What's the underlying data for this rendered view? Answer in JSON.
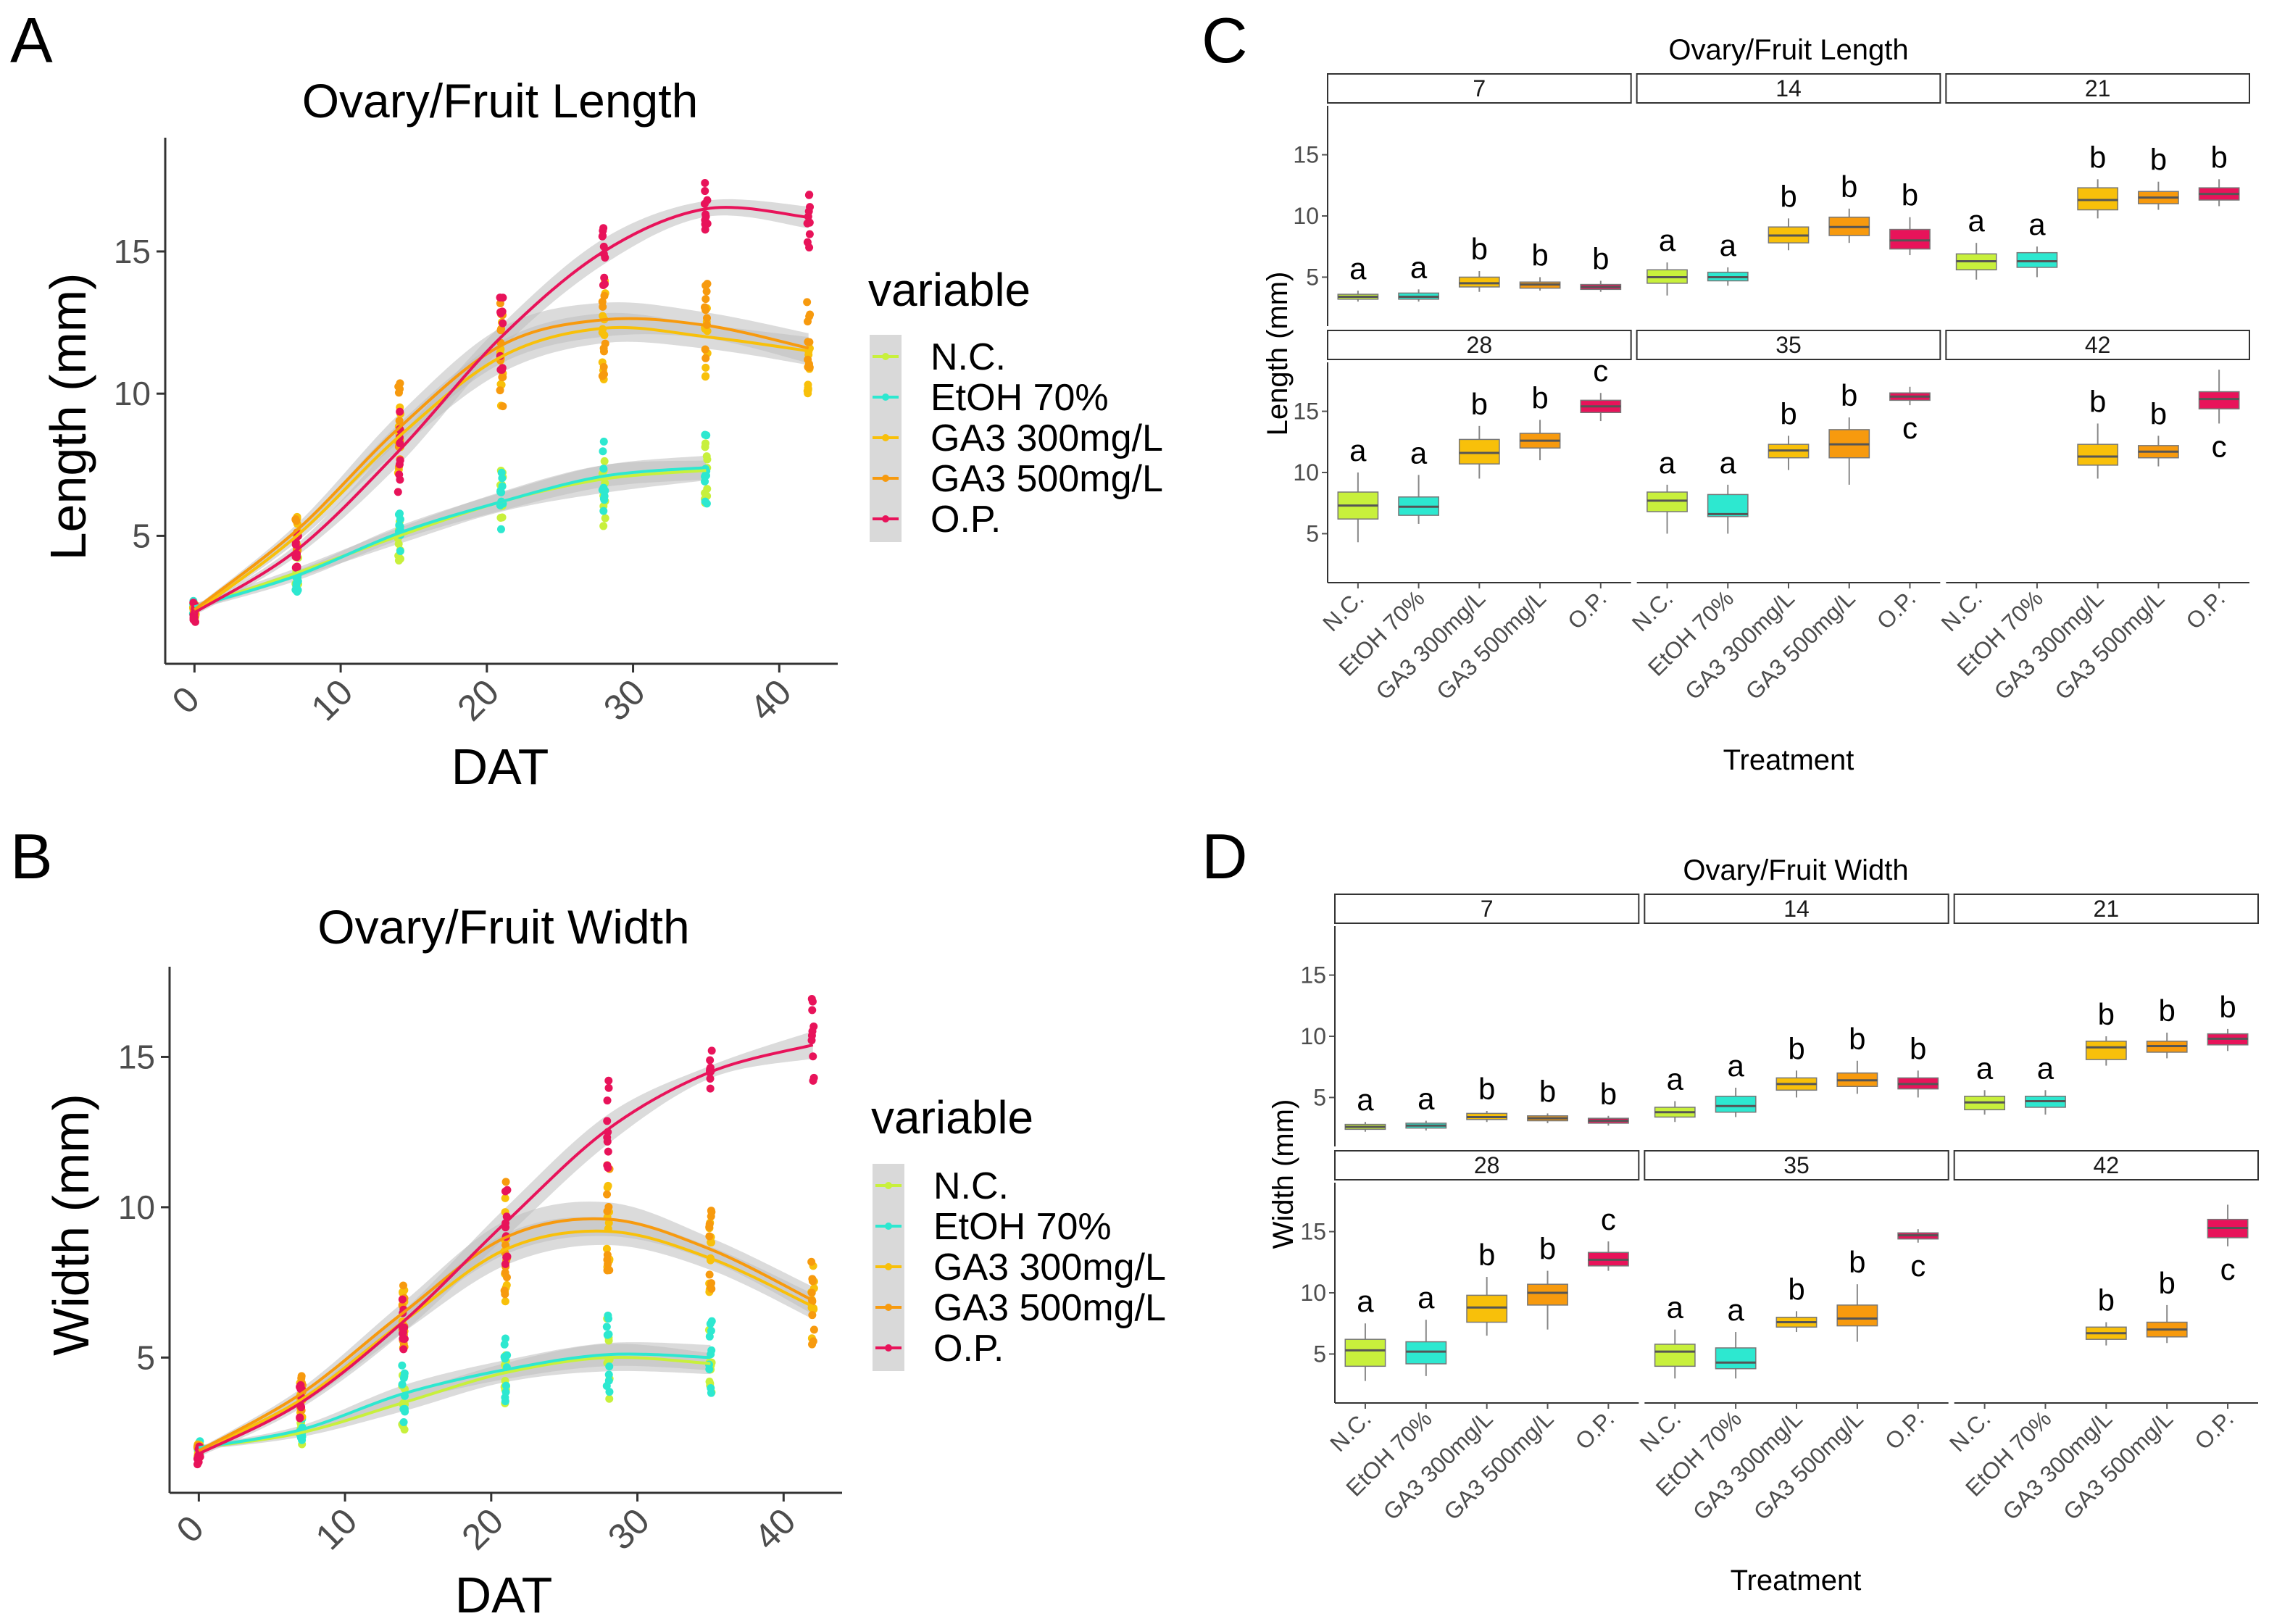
{
  "panel_labels": [
    "A",
    "B",
    "C",
    "D"
  ],
  "colors": {
    "N.C.": "#c8f03c",
    "EtOH 70%": "#2de8d0",
    "GA3 300mg/L": "#f8c00a",
    "GA3 500mg/L": "#f79a0e",
    "O.P.": "#e8135a",
    "ribbon": "#bdbdbd"
  },
  "chart_data": [
    {
      "id": "A",
      "type": "line",
      "title": "Ovary/Fruit Length",
      "xlabel": "DAT",
      "ylabel": "Length (mm)",
      "xlim": [
        -2,
        44
      ],
      "ylim": [
        0.5,
        19
      ],
      "xticks": [
        0,
        10,
        20,
        30,
        40
      ],
      "yticks": [
        5,
        10,
        15
      ],
      "legend": {
        "title": "variable",
        "position": "right"
      },
      "x": [
        0,
        7,
        14,
        21,
        28,
        35,
        42
      ],
      "series": [
        {
          "name": "N.C.",
          "values": [
            2.5,
            3.7,
            5.0,
            6.2,
            7.0,
            7.3,
            null
          ],
          "spread": [
            0.3,
            0.5,
            0.8,
            1.0,
            1.4,
            1.0,
            0
          ]
        },
        {
          "name": "EtOH 70%",
          "values": [
            2.5,
            3.6,
            5.1,
            6.2,
            7.1,
            7.4,
            null
          ],
          "spread": [
            0.3,
            0.5,
            0.7,
            0.9,
            1.1,
            1.2,
            0
          ]
        },
        {
          "name": "GA3 300mg/L",
          "values": [
            2.3,
            5.0,
            8.5,
            11.3,
            12.3,
            12.0,
            11.5
          ],
          "spread": [
            0.2,
            0.6,
            1.3,
            1.6,
            1.5,
            1.2,
            1.4
          ]
        },
        {
          "name": "GA3 500mg/L",
          "values": [
            2.4,
            5.2,
            8.8,
            11.7,
            12.6,
            12.4,
            11.6
          ],
          "spread": [
            0.2,
            0.6,
            1.4,
            1.8,
            1.7,
            1.3,
            1.5
          ]
        },
        {
          "name": "O.P.",
          "values": [
            2.3,
            4.5,
            8.0,
            12.0,
            15.0,
            16.5,
            16.2
          ],
          "spread": [
            0.3,
            0.6,
            1.4,
            1.2,
            1.3,
            0.8,
            1.1
          ]
        }
      ]
    },
    {
      "id": "B",
      "type": "line",
      "title": "Ovary/Fruit Width",
      "xlabel": "DAT",
      "ylabel": "Width (mm)",
      "xlim": [
        -2,
        44
      ],
      "ylim": [
        0.5,
        18
      ],
      "xticks": [
        0,
        10,
        20,
        30,
        40
      ],
      "yticks": [
        5,
        10,
        15
      ],
      "legend": {
        "title": "variable",
        "position": "right"
      },
      "x": [
        0,
        7,
        14,
        21,
        28,
        35,
        42
      ],
      "series": [
        {
          "name": "N.C.",
          "values": [
            2.0,
            2.5,
            3.5,
            4.5,
            5.0,
            4.8,
            null
          ],
          "spread": [
            0.2,
            0.4,
            0.8,
            0.9,
            1.3,
            1.0,
            0
          ]
        },
        {
          "name": "EtOH 70%",
          "values": [
            2.0,
            2.6,
            3.8,
            4.6,
            5.1,
            5.0,
            null
          ],
          "spread": [
            0.2,
            0.4,
            0.8,
            0.9,
            1.1,
            1.2,
            0
          ]
        },
        {
          "name": "GA3 300mg/L",
          "values": [
            1.9,
            3.6,
            6.2,
            8.6,
            9.2,
            8.3,
            6.7
          ],
          "spread": [
            0.2,
            0.5,
            1.0,
            1.5,
            1.3,
            1.1,
            1.2
          ]
        },
        {
          "name": "GA3 500mg/L",
          "values": [
            1.9,
            3.8,
            6.5,
            9.0,
            9.6,
            8.6,
            6.9
          ],
          "spread": [
            0.2,
            0.5,
            1.0,
            1.6,
            1.6,
            1.1,
            1.3
          ]
        },
        {
          "name": "O.P.",
          "values": [
            1.8,
            3.5,
            6.2,
            9.5,
            12.6,
            14.5,
            15.4
          ],
          "spread": [
            0.3,
            0.5,
            1.0,
            1.4,
            1.4,
            0.6,
            1.3
          ]
        }
      ]
    },
    {
      "id": "C",
      "type": "box",
      "title": "Ovary/Fruit Length",
      "xlabel": "Treatment",
      "ylabel": "Length (mm)",
      "ylim": [
        1,
        19
      ],
      "yticks": [
        5,
        10,
        15
      ],
      "categories": [
        "N.C.",
        "EtOH 70%",
        "GA3 300mg/L",
        "GA3 500mg/L",
        "O.P."
      ],
      "facets": [
        {
          "label": "7",
          "boxes": [
            {
              "q": [
                3.0,
                3.2,
                3.4,
                3.6,
                3.9
              ],
              "sig": "a"
            },
            {
              "q": [
                3.0,
                3.2,
                3.4,
                3.7,
                4.0
              ],
              "sig": "a"
            },
            {
              "q": [
                3.8,
                4.2,
                4.5,
                5.0,
                5.5
              ],
              "sig": "b"
            },
            {
              "q": [
                3.9,
                4.1,
                4.4,
                4.6,
                5.0
              ],
              "sig": "b"
            },
            {
              "q": [
                3.8,
                4.0,
                4.2,
                4.4,
                4.7
              ],
              "sig": "b"
            }
          ]
        },
        {
          "label": "14",
          "boxes": [
            {
              "q": [
                3.5,
                4.5,
                5.0,
                5.6,
                6.2
              ],
              "sig": "a"
            },
            {
              "q": [
                4.3,
                4.7,
                5.0,
                5.4,
                5.8
              ],
              "sig": "a"
            },
            {
              "q": [
                7.2,
                7.8,
                8.4,
                9.1,
                9.8
              ],
              "sig": "b"
            },
            {
              "q": [
                7.8,
                8.4,
                9.1,
                9.9,
                10.6
              ],
              "sig": "b"
            },
            {
              "q": [
                6.8,
                7.3,
                8.0,
                8.9,
                9.9
              ],
              "sig": "b"
            }
          ]
        },
        {
          "label": "21",
          "boxes": [
            {
              "q": [
                4.8,
                5.6,
                6.3,
                6.9,
                7.8
              ],
              "sig": "a"
            },
            {
              "q": [
                5.0,
                5.8,
                6.3,
                7.0,
                7.5
              ],
              "sig": "a"
            },
            {
              "q": [
                9.8,
                10.5,
                11.3,
                12.3,
                13.0
              ],
              "sig": "b"
            },
            {
              "q": [
                10.5,
                11.0,
                11.5,
                12.0,
                12.8
              ],
              "sig": "b"
            },
            {
              "q": [
                10.8,
                11.3,
                11.8,
                12.3,
                13.0
              ],
              "sig": "b"
            }
          ]
        },
        {
          "label": "28",
          "boxes": [
            {
              "q": [
                4.3,
                6.2,
                7.3,
                8.4,
                10.0
              ],
              "sig": "a"
            },
            {
              "q": [
                5.8,
                6.5,
                7.2,
                8.0,
                9.8
              ],
              "sig": "a"
            },
            {
              "q": [
                9.5,
                10.7,
                11.6,
                12.7,
                13.8
              ],
              "sig": "b"
            },
            {
              "q": [
                11.0,
                12.0,
                12.6,
                13.2,
                14.3
              ],
              "sig": "b"
            },
            {
              "q": [
                14.2,
                14.9,
                15.4,
                15.9,
                16.5
              ],
              "sig": "c"
            }
          ]
        },
        {
          "label": "35",
          "boxes": [
            {
              "q": [
                5.0,
                6.8,
                7.7,
                8.4,
                9.0
              ],
              "sig": "a"
            },
            {
              "q": [
                5.0,
                6.4,
                6.6,
                8.2,
                9.0
              ],
              "sig": "a"
            },
            {
              "q": [
                10.2,
                11.2,
                11.8,
                12.3,
                13.0
              ],
              "sig": "b"
            },
            {
              "q": [
                9.0,
                11.2,
                12.3,
                13.5,
                14.5
              ],
              "sig": "b"
            },
            {
              "q": [
                15.5,
                15.9,
                16.2,
                16.5,
                17.0
              ],
              "sig": "c"
            }
          ]
        },
        {
          "label": "42",
          "boxes": [
            {
              "q": null,
              "sig": ""
            },
            {
              "q": null,
              "sig": ""
            },
            {
              "q": [
                9.5,
                10.6,
                11.3,
                12.3,
                14.0
              ],
              "sig": "b"
            },
            {
              "q": [
                10.5,
                11.2,
                11.7,
                12.2,
                13.0
              ],
              "sig": "b"
            },
            {
              "q": [
                14.0,
                15.2,
                16.0,
                16.6,
                18.4
              ],
              "sig": "c"
            }
          ]
        }
      ]
    },
    {
      "id": "D",
      "type": "box",
      "title": "Ovary/Fruit Width",
      "xlabel": "Treatment",
      "ylabel": "Width (mm)",
      "ylim": [
        1,
        19
      ],
      "yticks": [
        5,
        10,
        15
      ],
      "categories": [
        "N.C.",
        "EtOH 70%",
        "GA3 300mg/L",
        "GA3 500mg/L",
        "O.P."
      ],
      "facets": [
        {
          "label": "7",
          "boxes": [
            {
              "q": [
                2.2,
                2.4,
                2.6,
                2.8,
                3.0
              ],
              "sig": "a"
            },
            {
              "q": [
                2.3,
                2.5,
                2.7,
                2.9,
                3.1
              ],
              "sig": "a"
            },
            {
              "q": [
                3.0,
                3.2,
                3.4,
                3.7,
                3.9
              ],
              "sig": "b"
            },
            {
              "q": [
                2.9,
                3.1,
                3.3,
                3.5,
                3.7
              ],
              "sig": "b"
            },
            {
              "q": [
                2.7,
                2.9,
                3.1,
                3.3,
                3.5
              ],
              "sig": "b"
            }
          ]
        },
        {
          "label": "14",
          "boxes": [
            {
              "q": [
                3.0,
                3.4,
                3.8,
                4.2,
                4.7
              ],
              "sig": "a"
            },
            {
              "q": [
                3.4,
                3.8,
                4.3,
                5.1,
                5.8
              ],
              "sig": "a"
            },
            {
              "q": [
                5.0,
                5.6,
                6.1,
                6.6,
                7.2
              ],
              "sig": "b"
            },
            {
              "q": [
                5.3,
                5.9,
                6.4,
                7.0,
                8.0
              ],
              "sig": "b"
            },
            {
              "q": [
                5.0,
                5.7,
                6.1,
                6.6,
                7.2
              ],
              "sig": "b"
            }
          ]
        },
        {
          "label": "21",
          "boxes": [
            {
              "q": [
                3.6,
                4.0,
                4.6,
                5.1,
                5.6
              ],
              "sig": "a"
            },
            {
              "q": [
                3.6,
                4.2,
                4.7,
                5.1,
                5.6
              ],
              "sig": "a"
            },
            {
              "q": [
                7.6,
                8.1,
                9.1,
                9.6,
                10.0
              ],
              "sig": "b"
            },
            {
              "q": [
                8.2,
                8.7,
                9.2,
                9.6,
                10.3
              ],
              "sig": "b"
            },
            {
              "q": [
                8.8,
                9.3,
                9.8,
                10.2,
                10.6
              ],
              "sig": "b"
            }
          ]
        },
        {
          "label": "28",
          "boxes": [
            {
              "q": [
                2.8,
                4.0,
                5.3,
                6.2,
                7.5
              ],
              "sig": "a"
            },
            {
              "q": [
                3.2,
                4.2,
                5.2,
                6.0,
                7.8
              ],
              "sig": "a"
            },
            {
              "q": [
                6.5,
                7.6,
                8.8,
                9.8,
                11.3
              ],
              "sig": "b"
            },
            {
              "q": [
                7.0,
                9.0,
                10.0,
                10.7,
                11.8
              ],
              "sig": "b"
            },
            {
              "q": [
                11.8,
                12.2,
                12.7,
                13.3,
                14.2
              ],
              "sig": "c"
            }
          ]
        },
        {
          "label": "35",
          "boxes": [
            {
              "q": [
                3.0,
                4.0,
                5.2,
                5.8,
                7.0
              ],
              "sig": "a"
            },
            {
              "q": [
                3.0,
                3.8,
                4.3,
                5.5,
                6.8
              ],
              "sig": "a"
            },
            {
              "q": [
                6.8,
                7.2,
                7.6,
                8.0,
                8.5
              ],
              "sig": "b"
            },
            {
              "q": [
                6.0,
                7.3,
                7.9,
                9.0,
                10.7
              ],
              "sig": "b"
            },
            {
              "q": [
                14.1,
                14.4,
                14.7,
                14.9,
                15.2
              ],
              "sig": "c"
            }
          ]
        },
        {
          "label": "42",
          "boxes": [
            {
              "q": null,
              "sig": ""
            },
            {
              "q": null,
              "sig": ""
            },
            {
              "q": [
                5.7,
                6.2,
                6.7,
                7.2,
                7.6
              ],
              "sig": "b"
            },
            {
              "q": [
                5.9,
                6.4,
                7.0,
                7.6,
                9.0
              ],
              "sig": "b"
            },
            {
              "q": [
                13.8,
                14.5,
                15.3,
                16.0,
                17.2
              ],
              "sig": "c"
            }
          ]
        }
      ]
    }
  ]
}
